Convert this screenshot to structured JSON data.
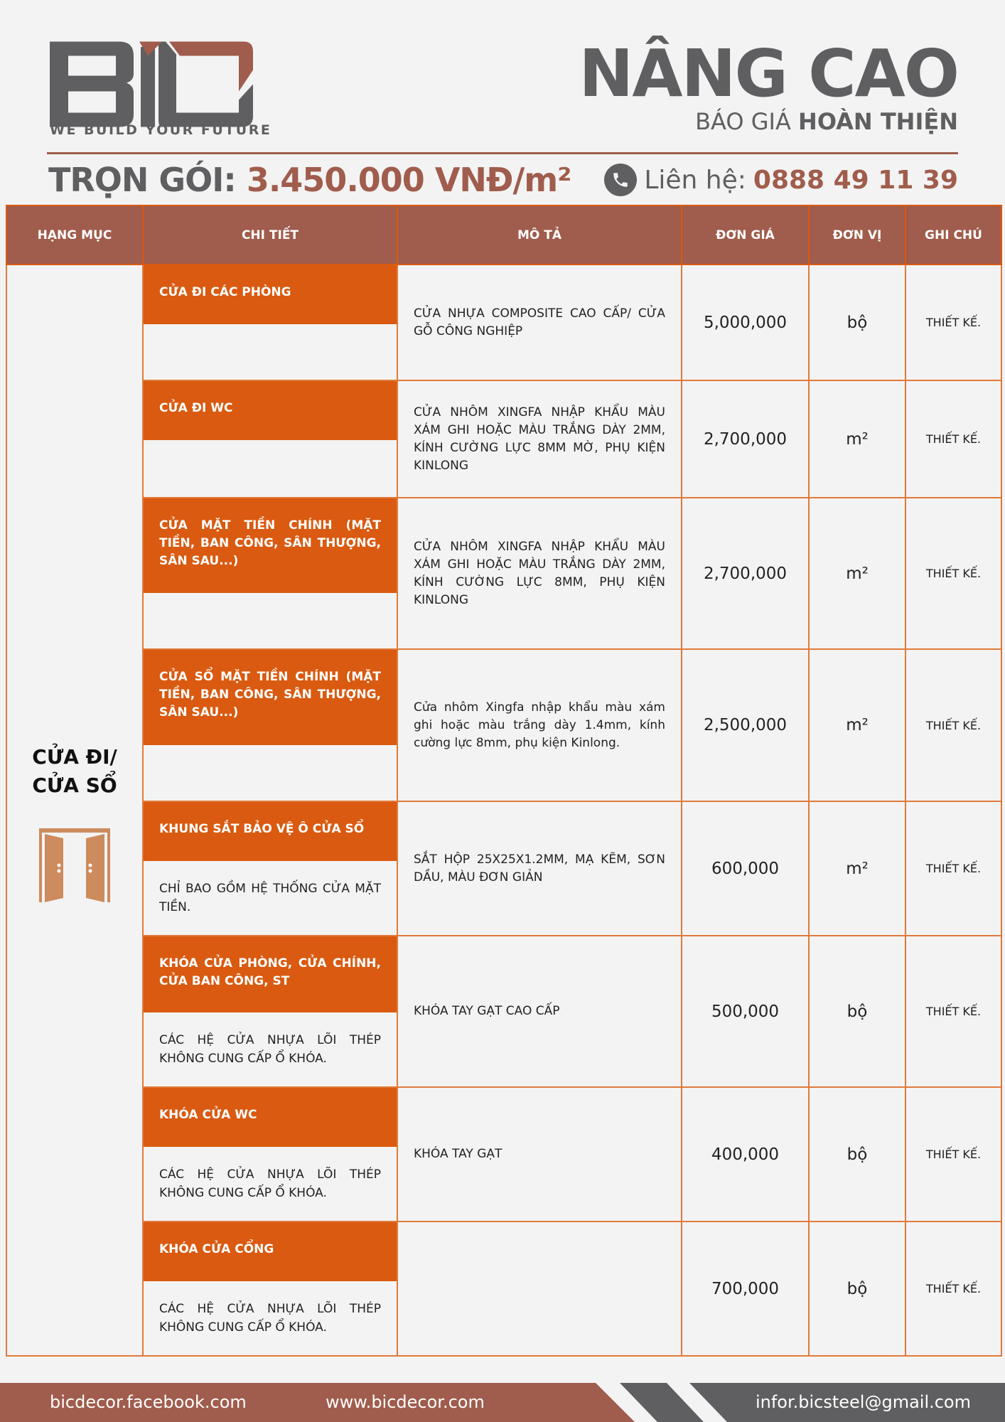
{
  "brand": {
    "logo_text": "BIC",
    "tagline": "WE BUILD YOUR FUTURE",
    "colors": {
      "primary": "#a05c4c",
      "gray": "#5f5f61",
      "accent": "#d95a10"
    }
  },
  "header": {
    "title": "NÂNG CAO",
    "subtitle_prefix": "BÁO GIÁ",
    "subtitle_bold": "HOÀN THIỆN"
  },
  "package": {
    "label": "TRỌN GÓI:",
    "price": "3.450.000 VNĐ/m²"
  },
  "contact": {
    "label": "Liên hệ:",
    "phone": "0888 49 11 39",
    "icon": "phone-icon"
  },
  "table": {
    "headers": [
      "HẠNG MỤC",
      "CHI TIẾT",
      "MÔ TẢ",
      "ĐƠN GIÁ",
      "ĐƠN VỊ",
      "GHI CHÚ"
    ],
    "category": {
      "label_line1": "CỬA ĐI/",
      "label_line2": "CỬA SỔ",
      "icon": "double-door-icon"
    },
    "rows": [
      {
        "title": "CỬA ĐI CÁC PHÒNG",
        "note": "",
        "desc": "CỬA NHỰA COMPOSITE CAO CẤP/ CỬA GỖ CÔNG NGHIỆP",
        "price": "5,000,000",
        "unit": "bộ",
        "remark": "THIẾT KẾ."
      },
      {
        "title": "CỬA ĐI WC",
        "note": "",
        "desc": "CỬA NHÔM XINGFA NHẬP KHẨU MÀU XÁM GHI HOẶC MÀU TRẮNG DÀY 2MM, KÍNH CƯỜNG LỰC 8MM MỜ, PHỤ KIỆN KINLONG",
        "price": "2,700,000",
        "unit": "m²",
        "remark": "THIẾT KẾ."
      },
      {
        "title": "CỬA MẶT TIỀN CHÍNH (MẶT TIỀN, BAN CÔNG, SÂN THƯỢNG, SÂN SAU...)",
        "note": "",
        "desc": "CỬA NHÔM XINGFA NHẬP KHẨU MÀU XÁM GHI HOẶC MÀU TRẮNG DÀY 2MM, KÍNH CƯỜNG LỰC 8MM, PHỤ KIỆN KINLONG",
        "price": "2,700,000",
        "unit": "m²",
        "remark": "THIẾT KẾ."
      },
      {
        "title": "CỬA SỔ MẶT TIỀN CHÍNH (MẶT TIỀN, BAN CÔNG, SÂN THƯỢNG, SÂN SAU...)",
        "note": "",
        "desc": "Cửa nhôm Xingfa nhập khẩu màu xám ghi hoặc màu trắng dày 1.4mm, kính cường lực 8mm, phụ kiện Kinlong.",
        "price": "2,500,000",
        "unit": "m²",
        "remark": "THIẾT KẾ."
      },
      {
        "title": "KHUNG SẮT BẢO VỆ Ô CỬA SỔ",
        "note": "CHỈ BAO GỒM HỆ THỐNG CỬA MẶT TIỀN.",
        "desc": "SẮT HỘP 25X25X1.2MM, MẠ KẼM, SƠN DẦU, MÀU ĐƠN GIẢN",
        "price": "600,000",
        "unit": "m²",
        "remark": "THIẾT KẾ."
      },
      {
        "title": "KHÓA CỬA PHÒNG, CỬA CHÍNH, CỬA BAN CÔNG, ST",
        "note": "CÁC HỆ CỬA NHỰA LÕI THÉP KHÔNG CUNG CẤP Ổ KHÓA.",
        "desc": "KHÓA TAY GẠT CAO CẤP",
        "price": "500,000",
        "unit": "bộ",
        "remark": "THIẾT KẾ."
      },
      {
        "title": "KHÓA CỬA WC",
        "note": "CÁC HỆ CỬA NHỰA LÕI THÉP KHÔNG CUNG CẤP Ổ KHÓA.",
        "desc": "KHÓA TAY GẠT",
        "price": "400,000",
        "unit": "bộ",
        "remark": "THIẾT KẾ."
      },
      {
        "title": "KHÓA CỬA CỔNG",
        "note": "CÁC HỆ CỬA NHỰA LÕI THÉP KHÔNG CUNG CẤP Ổ KHÓA.",
        "desc": "",
        "price": "700,000",
        "unit": "bộ",
        "remark": "THIẾT KẾ."
      }
    ]
  },
  "footer": {
    "facebook": "bicdecor.facebook.com",
    "website": "www.bicdecor.com",
    "email": "infor.bicsteel@gmail.com"
  }
}
